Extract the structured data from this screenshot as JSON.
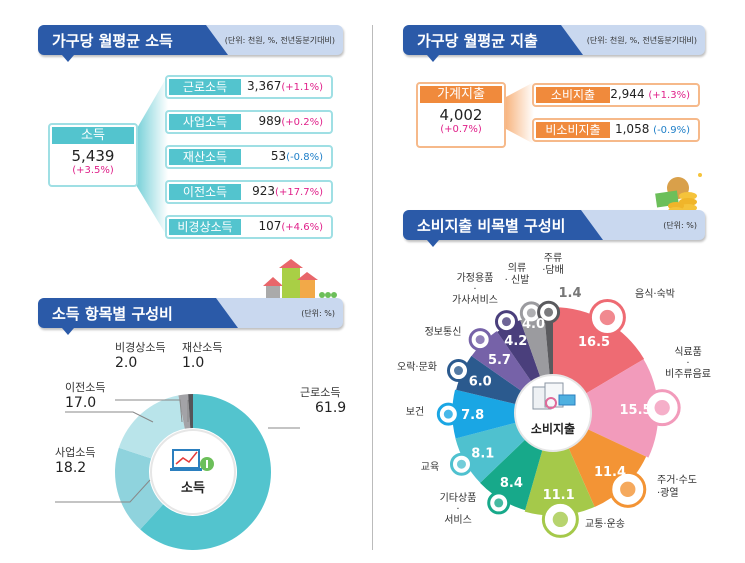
{
  "income_header": {
    "title": "가구당 월평균 소득",
    "unit": "(단위: 천원, %, 전년동분기대비)"
  },
  "income_total": {
    "label": "소득",
    "value": "5,439",
    "change": "(+3.5%)"
  },
  "income_items": [
    {
      "label": "근로소득",
      "value": "3,367",
      "change": "(+1.1%)",
      "sign": "pos"
    },
    {
      "label": "사업소득",
      "value": "989",
      "change": "(+0.2%)",
      "sign": "pos"
    },
    {
      "label": "재산소득",
      "value": "53",
      "change": "(-0.8%)",
      "sign": "neg"
    },
    {
      "label": "이전소득",
      "value": "923",
      "change": "(+17.7%)",
      "sign": "pos"
    },
    {
      "label": "비경상소득",
      "value": "107",
      "change": "(+4.6%)",
      "sign": "pos"
    }
  ],
  "expense_header": {
    "title": "가구당 월평균 지출",
    "unit": "(단위: 천원, %, 전년동분기대비)"
  },
  "expense_total": {
    "label": "가계지출",
    "value": "4,002",
    "change": "(+0.7%)"
  },
  "expense_items": [
    {
      "label": "소비지출",
      "value": "2,944",
      "change": "(+1.3%)",
      "sign": "pos"
    },
    {
      "label": "비소비지출",
      "value": "1,058",
      "change": "(-0.9%)",
      "sign": "neg"
    }
  ],
  "income_comp_header": {
    "title": "소득 항목별 구성비",
    "unit": "(단위: %)"
  },
  "consumption_comp_header": {
    "title": "소비지출 비목별 구성비",
    "unit": "(단위: %)"
  },
  "colors": {
    "brand_blue": "#2b5aa8",
    "teal": "#53c4ce",
    "orange": "#f08a3c",
    "positive": "#e0218a",
    "negative": "#1f7fc8"
  },
  "chart_data": [
    {
      "type": "pie",
      "style": "donut",
      "center_label": "소득",
      "center_icon": "laptop-chart-money-icon",
      "categories": [
        "근로소득",
        "사업소득",
        "이전소득",
        "비경상소득",
        "재산소득"
      ],
      "values": [
        61.9,
        18.2,
        17.0,
        2.0,
        1.0
      ],
      "labels": [
        "61.9",
        "18.2",
        "17.0",
        "2.0",
        "1.0"
      ],
      "colors": [
        "#53c4ce",
        "#8fd3dd",
        "#b9e4ea",
        "#a3a3a7",
        "#555559"
      ]
    },
    {
      "type": "pie",
      "style": "radial",
      "center_label": "소비지출",
      "center_icon": "receipt-card-icon",
      "categories": [
        "음식·숙박",
        "식료품·비주류음료",
        "주거·수도·광열",
        "교통·운송",
        "기타상품·서비스",
        "교육",
        "보건",
        "오락·문화",
        "정보통신",
        "가정용품·가사서비스",
        "의류·신발",
        "주류·담배"
      ],
      "label_lines": [
        [
          "음식·숙박"
        ],
        [
          "식료품",
          "·",
          "비주류음료"
        ],
        [
          "주거·수도",
          "·광열"
        ],
        [
          "교통·운송"
        ],
        [
          "기타상품",
          "·",
          "서비스"
        ],
        [
          "교육"
        ],
        [
          "보건"
        ],
        [
          "오락·문화"
        ],
        [
          "정보통신"
        ],
        [
          "가정용품",
          "·",
          "가사서비스"
        ],
        [
          "의류",
          "· 신발"
        ],
        [
          "주류",
          "·담배"
        ]
      ],
      "values": [
        16.5,
        15.5,
        11.4,
        11.1,
        8.4,
        8.1,
        7.8,
        6.0,
        5.7,
        4.2,
        4.0,
        1.4
      ],
      "labels": [
        "16.5",
        "15.5",
        "11.4",
        "11.1",
        "8.4",
        "8.1",
        "7.8",
        "6.0",
        "5.7",
        "4.2",
        "4.0",
        "1.4"
      ],
      "colors": [
        "#ee6b73",
        "#f29bbb",
        "#f39435",
        "#a5c94a",
        "#17a98a",
        "#4fc1cf",
        "#1aa6e4",
        "#2b5a8e",
        "#7662a8",
        "#4a3f7c",
        "#9b9b9f",
        "#5a5a5e"
      ],
      "icons": [
        "food-plate-icon",
        "grocery-icon",
        "house-icon",
        "car-icon",
        "bag-icon",
        "education-icon",
        "medical-kit-icon",
        "game-controller-icon",
        "phone-icon",
        "appliance-icon",
        "clothing-icon",
        "bottle-icon"
      ]
    }
  ]
}
